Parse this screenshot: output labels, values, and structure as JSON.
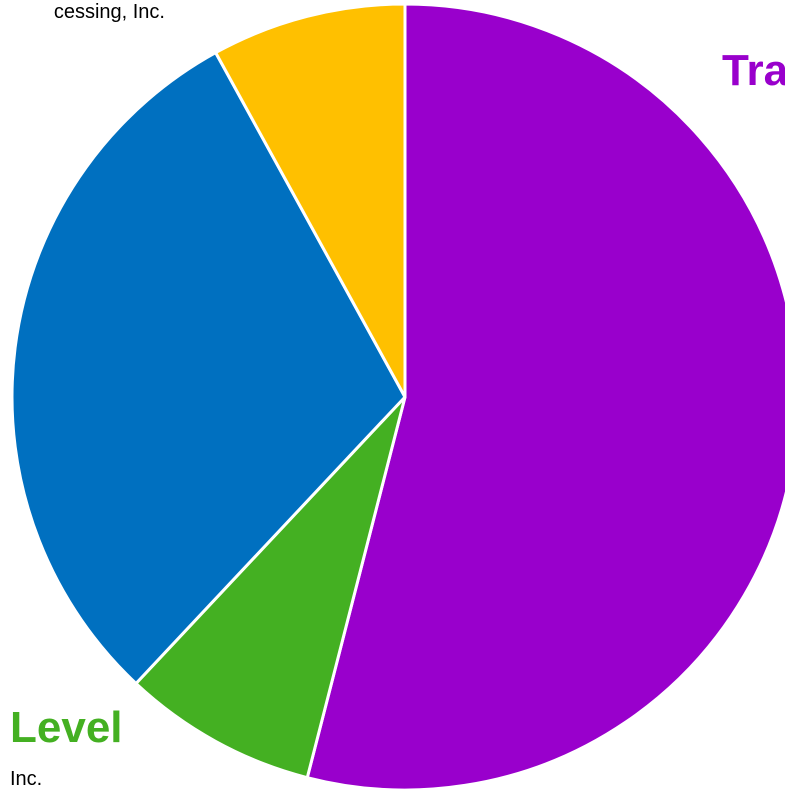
{
  "chart_data": {
    "type": "pie",
    "categories": [
      null,
      null,
      null,
      null
    ],
    "values": [
      54,
      8,
      30,
      8
    ],
    "colors": [
      "#9900cc",
      "#44b022",
      "#0070c0",
      "#ffc000"
    ],
    "annotations": [
      {
        "text": "cessing, Inc.",
        "color": "#000000",
        "bold": false
      },
      {
        "text": "Tra",
        "color": "#9900cc",
        "bold": true
      },
      {
        "text": "Level",
        "color": "#44b022",
        "bold": true
      },
      {
        "text": "Inc.",
        "color": "#000000",
        "bold": false
      }
    ]
  }
}
